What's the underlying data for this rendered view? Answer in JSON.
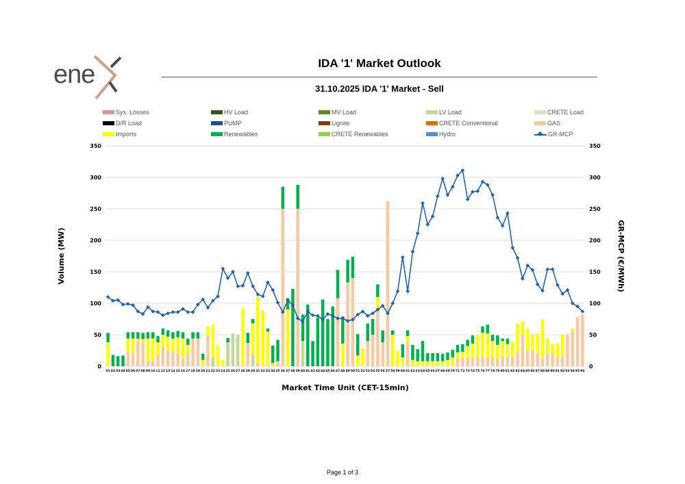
{
  "brand": {
    "name": "enex",
    "word": "ene"
  },
  "page": {
    "footer": "Page 1 of 3"
  },
  "chart_data": {
    "type": "bar",
    "title": "IDA '1' Market Outlook",
    "subtitle": "31.10.2025  IDA '1' Market - Sell",
    "xlabel": "Market Time Unit (CET-15min)",
    "ylabel": "Volume (MW)",
    "y2label": "GR-MCP (€/MWh)",
    "ylim": [
      0,
      350
    ],
    "y2lim": [
      0,
      350
    ],
    "yticks": [
      0,
      50,
      100,
      150,
      200,
      250,
      300,
      350
    ],
    "categories": [
      "01",
      "02",
      "03",
      "04",
      "05",
      "06",
      "07",
      "08",
      "09",
      "10",
      "11",
      "12",
      "13",
      "14",
      "15",
      "16",
      "17",
      "18",
      "19",
      "20",
      "21",
      "22",
      "23",
      "24",
      "25",
      "26",
      "27",
      "28",
      "29",
      "30",
      "31",
      "32",
      "33",
      "34",
      "35",
      "36",
      "37",
      "38",
      "39",
      "40",
      "41",
      "42",
      "43",
      "44",
      "45",
      "46",
      "47",
      "48",
      "49",
      "50",
      "51",
      "52",
      "53",
      "54",
      "55",
      "56",
      "57",
      "58",
      "59",
      "60",
      "61",
      "62",
      "63",
      "64",
      "65",
      "66",
      "67",
      "68",
      "69",
      "70",
      "71",
      "72",
      "73",
      "74",
      "75",
      "76",
      "77",
      "78",
      "79",
      "80",
      "81",
      "82",
      "83",
      "84",
      "85",
      "86",
      "87",
      "88",
      "89",
      "90",
      "91",
      "92",
      "93",
      "94",
      "95",
      "96"
    ],
    "legend": [
      {
        "name": "Sys. Losses",
        "color": "#d99694"
      },
      {
        "name": "HV Load",
        "color": "#375623"
      },
      {
        "name": "MV Load",
        "color": "#5a8a2e"
      },
      {
        "name": "LV Load",
        "color": "#c4d79b"
      },
      {
        "name": "CRETE Load",
        "color": "#d8e4bc"
      },
      {
        "name": "D/R Load",
        "color": "#000000"
      },
      {
        "name": "PUMP",
        "color": "#244e8a"
      },
      {
        "name": "Lignite",
        "color": "#843c0c"
      },
      {
        "name": "CRETE Conventional",
        "color": "#e46c0a"
      },
      {
        "name": "GAS",
        "color": "#f8c9a5"
      },
      {
        "name": "Imports",
        "color": "#ffff00"
      },
      {
        "name": "Renewables",
        "color": "#00b050"
      },
      {
        "name": "CRETE Renewables",
        "color": "#92d050"
      },
      {
        "name": "Hydro",
        "color": "#558ed5"
      },
      {
        "name": "GR-MCP",
        "color": "#2063a5"
      }
    ],
    "series": [
      {
        "name": "Sys. Losses",
        "values": [
          0,
          0,
          0,
          0,
          0,
          0,
          0,
          0,
          0,
          0,
          0,
          0,
          0,
          0,
          0,
          0,
          0,
          0,
          0,
          0,
          0,
          0,
          0,
          0,
          0,
          0,
          0,
          0,
          0,
          0,
          0,
          0,
          0,
          0,
          0,
          0,
          0,
          0,
          0,
          0,
          0,
          0,
          0,
          0,
          0,
          0,
          0,
          0,
          0,
          0,
          0,
          0,
          0,
          0,
          0,
          0,
          0,
          0,
          0,
          0,
          0,
          0,
          0,
          0,
          0,
          0,
          0,
          0,
          0,
          0,
          0,
          0,
          0,
          0,
          0,
          0,
          0,
          0,
          0,
          0,
          0,
          0,
          0,
          0,
          0,
          0,
          0,
          0,
          0,
          0,
          0,
          0,
          0,
          0,
          0,
          0
        ]
      },
      {
        "name": "LV Load",
        "values": [
          0,
          0,
          0,
          0,
          0,
          0,
          0,
          0,
          0,
          0,
          0,
          0,
          0,
          0,
          0,
          0,
          0,
          0,
          0,
          0,
          0,
          14,
          0,
          0,
          38,
          52,
          50,
          0,
          0,
          18,
          0,
          0,
          0,
          0,
          0,
          0,
          0,
          0,
          0,
          40,
          0,
          0,
          0,
          0,
          0,
          0,
          0,
          0,
          0,
          0,
          0,
          0,
          0,
          0,
          0,
          0,
          0,
          0,
          0,
          0,
          0,
          0,
          0,
          0,
          0,
          0,
          0,
          0,
          0,
          0,
          0,
          0,
          0,
          0,
          0,
          0,
          0,
          0,
          0,
          0,
          0,
          0,
          0,
          0,
          0,
          0,
          0,
          0,
          0,
          0,
          0,
          0,
          0,
          0,
          0,
          0
        ]
      },
      {
        "name": "GAS",
        "values": [
          0,
          0,
          0,
          0,
          22,
          20,
          40,
          38,
          8,
          8,
          18,
          30,
          25,
          22,
          20,
          12,
          20,
          44,
          44,
          0,
          48,
          0,
          0,
          0,
          0,
          0,
          0,
          0,
          37,
          0,
          5,
          0,
          0,
          0,
          8,
          250,
          0,
          0,
          250,
          0,
          0,
          0,
          0,
          0,
          0,
          0,
          108,
          0,
          133,
          140,
          0,
          0,
          40,
          50,
          90,
          38,
          262,
          0,
          0,
          0,
          38,
          0,
          0,
          0,
          0,
          0,
          0,
          0,
          0,
          0,
          12,
          13,
          12,
          14,
          14,
          15,
          14,
          12,
          12,
          15,
          15,
          14,
          22,
          50,
          25,
          25,
          20,
          12,
          20,
          20,
          14,
          15,
          50,
          55,
          78,
          82
        ]
      },
      {
        "name": "Imports",
        "values": [
          38,
          0,
          0,
          0,
          22,
          24,
          4,
          5,
          36,
          36,
          20,
          20,
          22,
          22,
          26,
          32,
          14,
          0,
          0,
          10,
          15,
          52,
          34,
          10,
          0,
          0,
          0,
          92,
          0,
          50,
          105,
          88,
          55,
          5,
          0,
          0,
          90,
          0,
          0,
          0,
          0,
          0,
          0,
          0,
          0,
          0,
          0,
          36,
          0,
          0,
          17,
          28,
          0,
          0,
          20,
          0,
          0,
          50,
          25,
          14,
          10,
          10,
          8,
          8,
          8,
          8,
          8,
          8,
          10,
          14,
          10,
          10,
          20,
          22,
          36,
          38,
          38,
          28,
          22,
          25,
          20,
          25,
          46,
          22,
          35,
          25,
          32,
          62,
          25,
          15,
          22,
          35,
          0,
          5,
          0,
          0
        ]
      },
      {
        "name": "Renewables",
        "values": [
          15,
          18,
          16,
          17,
          10,
          10,
          10,
          10,
          10,
          10,
          10,
          10,
          10,
          10,
          10,
          10,
          10,
          10,
          10,
          10,
          0,
          0,
          0,
          0,
          7,
          0,
          0,
          0,
          16,
          7,
          0,
          0,
          5,
          28,
          34,
          35,
          18,
          123,
          38,
          42,
          98,
          40,
          77,
          106,
          75,
          95,
          45,
          43,
          36,
          34,
          34,
          0,
          28,
          25,
          20,
          19,
          0,
          7,
          0,
          21,
          9,
          24,
          19,
          32,
          13,
          13,
          13,
          12,
          12,
          12,
          12,
          12,
          10,
          13,
          0,
          10,
          14,
          10,
          15,
          4,
          9,
          0,
          0,
          0,
          0,
          0,
          0,
          0,
          0,
          0,
          0,
          0,
          0,
          0,
          0,
          0
        ]
      }
    ],
    "mcp": [
      110,
      104,
      105,
      98,
      99,
      97,
      87,
      83,
      94,
      87,
      86,
      81,
      84,
      86,
      86,
      91,
      86,
      86,
      98,
      106,
      93,
      104,
      111,
      155,
      140,
      150,
      127,
      128,
      148,
      127,
      114,
      111,
      133,
      121,
      101,
      86,
      105,
      97,
      76,
      71,
      87,
      81,
      80,
      74,
      83,
      80,
      76,
      76,
      72,
      74,
      82,
      87,
      80,
      84,
      90,
      96,
      84,
      100,
      119,
      173,
      119,
      182,
      211,
      259,
      225,
      238,
      270,
      298,
      272,
      285,
      303,
      311,
      265,
      277,
      278,
      293,
      288,
      272,
      236,
      223,
      243,
      188,
      172,
      139,
      160,
      153,
      130,
      120,
      154,
      154,
      129,
      115,
      121,
      100,
      95,
      87
    ]
  }
}
